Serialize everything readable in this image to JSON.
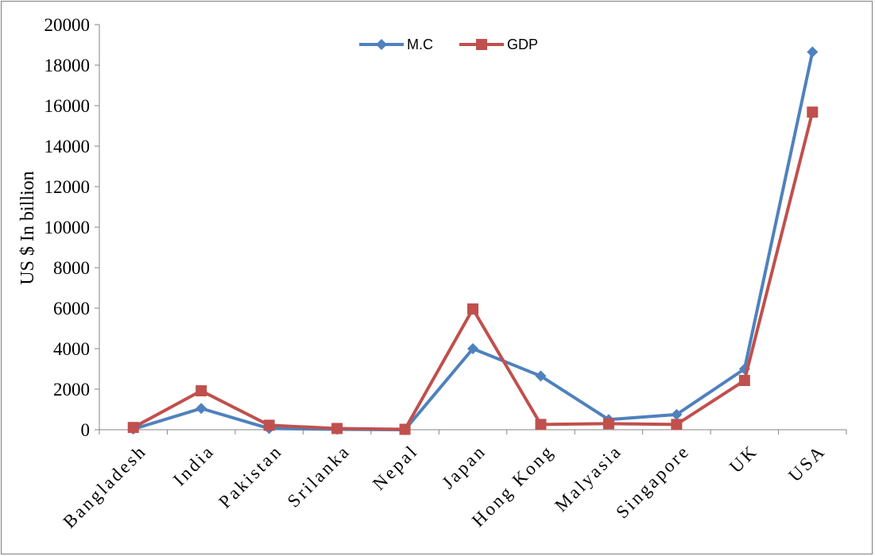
{
  "chart_data": {
    "type": "line",
    "categories": [
      "Bangladesh",
      "India",
      "Pakistan",
      "Srilanka",
      "Nepal",
      "Japan",
      "Hong Kong",
      "Malyasia",
      "Singapore",
      "UK",
      "USA"
    ],
    "series": [
      {
        "name": "M.C",
        "color": "#4f81bd",
        "marker": "diamond",
        "values": [
          30,
          1050,
          60,
          20,
          0,
          4000,
          2650,
          500,
          750,
          3000,
          18650
        ]
      },
      {
        "name": "GDP",
        "color": "#c0504d",
        "marker": "square",
        "values": [
          110,
          1920,
          220,
          60,
          20,
          5960,
          260,
          300,
          260,
          2430,
          15680
        ]
      }
    ],
    "title": "",
    "xlabel": "",
    "ylabel": "US $ In billion",
    "ylim": [
      0,
      20000
    ],
    "yticks": [
      "0",
      "2000",
      "4000",
      "6000",
      "8000",
      "10000",
      "12000",
      "14000",
      "16000",
      "18000",
      "20000"
    ],
    "grid": false,
    "legend_position": "top-center"
  }
}
